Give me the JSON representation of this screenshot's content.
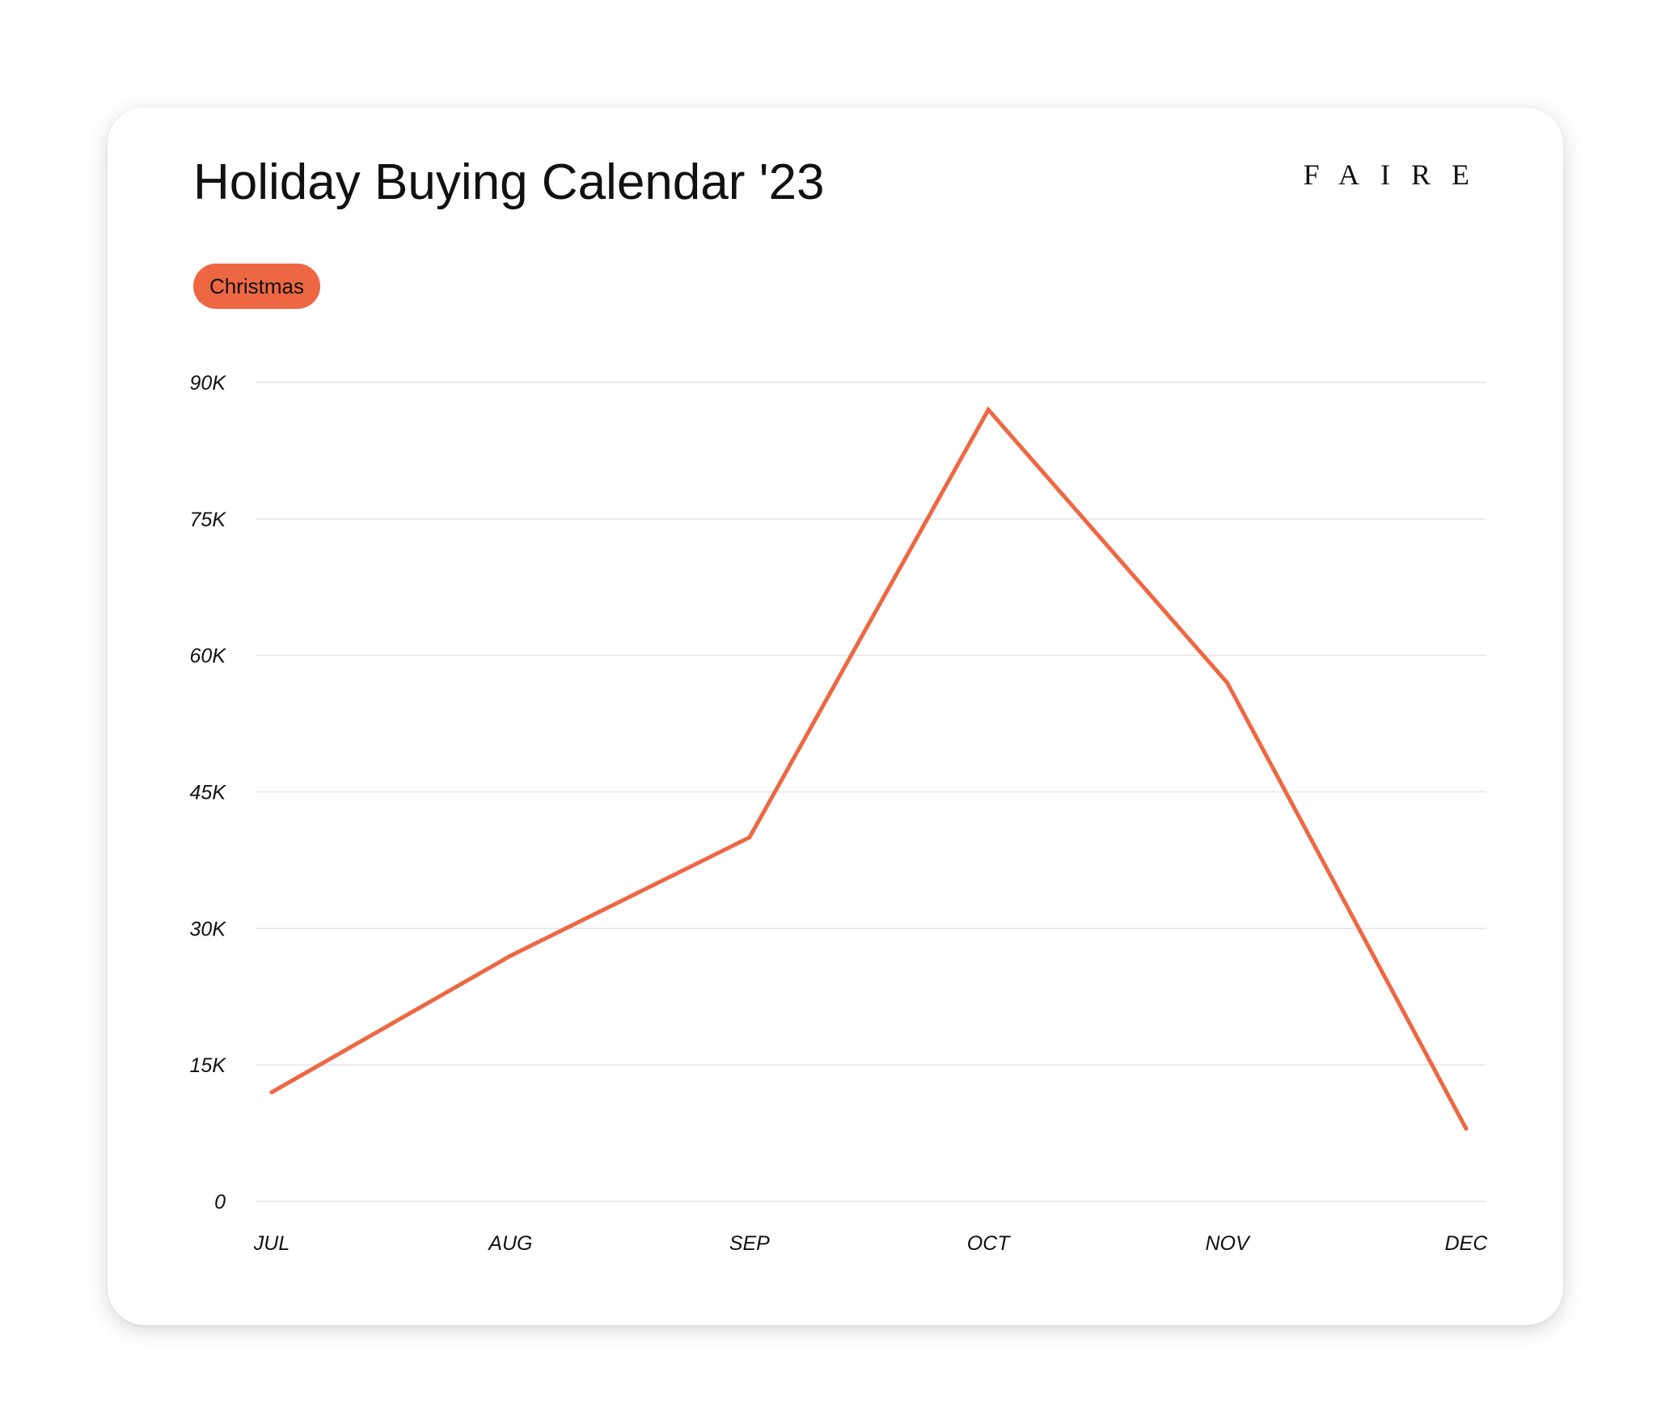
{
  "card": {
    "title": "Holiday Buying Calendar '23",
    "brand_logo": "FAIRE",
    "badge_label": "Christmas"
  },
  "colors": {
    "accent": "#EE6743",
    "gridline": "#E4E4E4",
    "text": "#111111"
  },
  "chart_data": {
    "type": "line",
    "title": "Holiday Buying Calendar '23",
    "xlabel": "",
    "ylabel": "",
    "categories": [
      "JUL",
      "AUG",
      "SEP",
      "OCT",
      "NOV",
      "DEC"
    ],
    "series": [
      {
        "name": "Christmas",
        "values": [
          12000,
          27000,
          40000,
          87000,
          57000,
          8000
        ]
      }
    ],
    "ylim": [
      0,
      90000
    ],
    "y_ticks": [
      0,
      15000,
      30000,
      45000,
      60000,
      75000,
      90000
    ],
    "y_tick_labels": [
      "0",
      "15K",
      "30K",
      "45K",
      "60K",
      "75K",
      "90K"
    ],
    "grid": true,
    "legend": "top-left"
  }
}
